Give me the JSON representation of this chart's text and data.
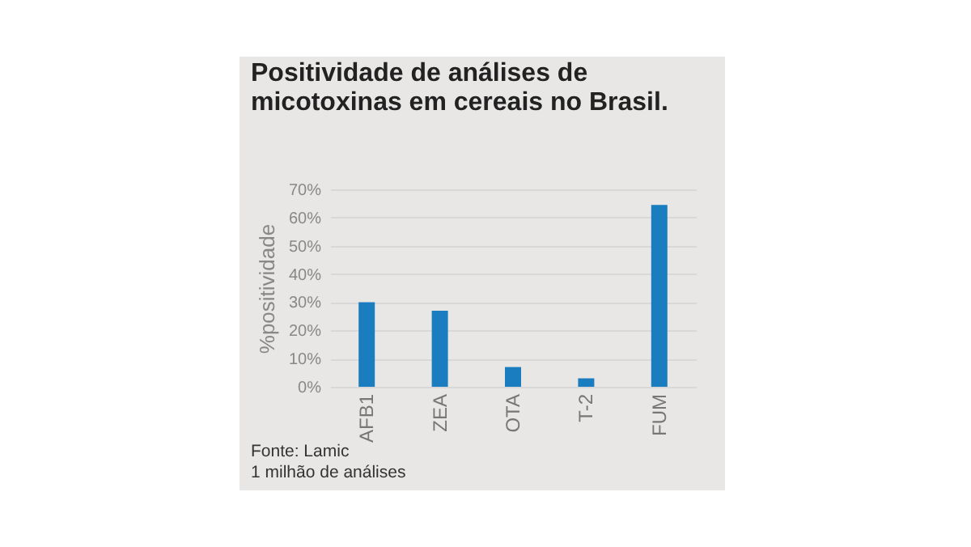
{
  "chart_data": {
    "type": "bar",
    "title": "Positividade de análises de micotoxinas em cereais no Brasil.",
    "ylabel": "%positividade",
    "categories": [
      "AFB1",
      "ZEA",
      "OTA",
      "T-2",
      "FUM"
    ],
    "values": [
      30,
      27,
      7,
      3,
      64.5
    ],
    "color": "#1a7dc0",
    "ylim": [
      0,
      70
    ],
    "yticks": [
      {
        "value": 0,
        "label": "0%"
      },
      {
        "value": 10,
        "label": "10%"
      },
      {
        "value": 20,
        "label": "20%"
      },
      {
        "value": 30,
        "label": "30%"
      },
      {
        "value": 40,
        "label": "40%"
      },
      {
        "value": 50,
        "label": "50%"
      },
      {
        "value": 60,
        "label": "60%"
      },
      {
        "value": 70,
        "label": "70%"
      }
    ],
    "grid": "y",
    "annotations": [
      "Fonte: Lamic",
      "1 milhão de análises"
    ]
  }
}
